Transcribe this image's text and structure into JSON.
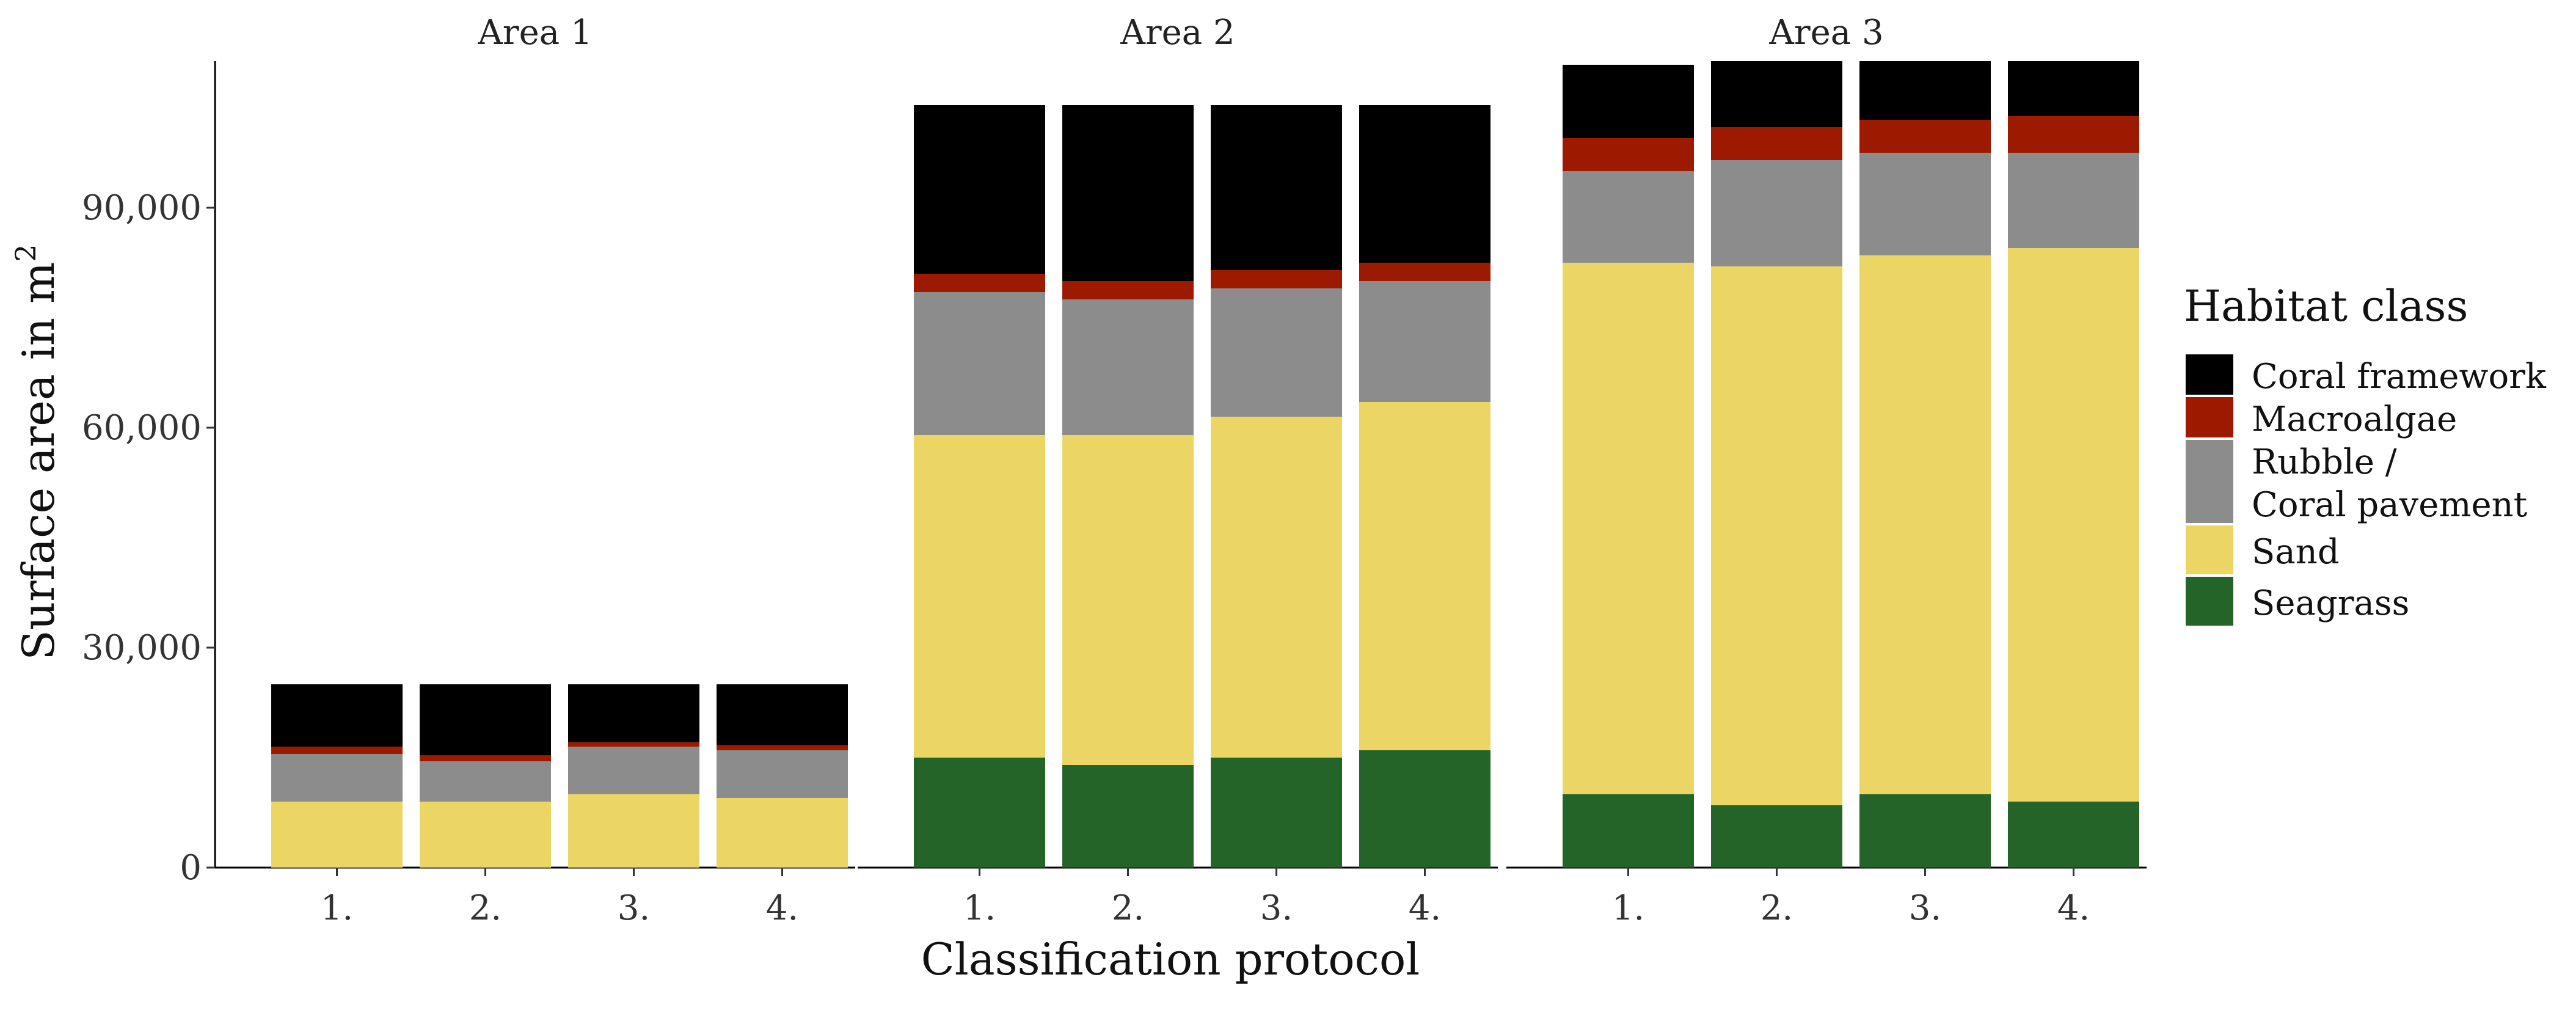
{
  "chart_data": {
    "type": "bar",
    "stacked": true,
    "facets": [
      {
        "title": "Area 1",
        "categories": [
          "1.",
          "2.",
          "3.",
          "4."
        ],
        "series": [
          {
            "name": "Seagrass",
            "values": [
              0,
              0,
              0,
              0
            ]
          },
          {
            "name": "Sand",
            "values": [
              9000,
              9000,
              10000,
              9500
            ]
          },
          {
            "name": "Rubble / Coral pavement",
            "values": [
              6500,
              5500,
              6500,
              6500
            ]
          },
          {
            "name": "Macroalgae",
            "values": [
              1000,
              800,
              600,
              700
            ]
          },
          {
            "name": "Coral framework",
            "values": [
              8500,
              9700,
              7900,
              8300
            ]
          }
        ]
      },
      {
        "title": "Area 2",
        "categories": [
          "1.",
          "2.",
          "3.",
          "4."
        ],
        "series": [
          {
            "name": "Seagrass",
            "values": [
              15000,
              14000,
              15000,
              16000
            ]
          },
          {
            "name": "Sand",
            "values": [
              44000,
              45000,
              46500,
              47500
            ]
          },
          {
            "name": "Rubble / Coral pavement",
            "values": [
              19500,
              18500,
              17500,
              16500
            ]
          },
          {
            "name": "Macroalgae",
            "values": [
              2500,
              2500,
              2500,
              2500
            ]
          },
          {
            "name": "Coral framework",
            "values": [
              23000,
              24000,
              22500,
              21500
            ]
          }
        ]
      },
      {
        "title": "Area 3",
        "categories": [
          "1.",
          "2.",
          "3.",
          "4."
        ],
        "series": [
          {
            "name": "Seagrass",
            "values": [
              10000,
              8500,
              10000,
              9000
            ]
          },
          {
            "name": "Sand",
            "values": [
              72500,
              73500,
              73500,
              75500
            ]
          },
          {
            "name": "Rubble / Coral pavement",
            "values": [
              12500,
              14500,
              14000,
              13000
            ]
          },
          {
            "name": "Macroalgae",
            "values": [
              4500,
              4500,
              4500,
              5000
            ]
          },
          {
            "name": "Coral framework",
            "values": [
              10000,
              9000,
              8000,
              7500
            ]
          }
        ]
      }
    ],
    "xlabel": "Classification protocol",
    "ylabel": "Surface area in m",
    "ylabel_superscript": "2",
    "ylim": [
      0,
      110000
    ],
    "yticks": [
      0,
      30000,
      60000,
      90000
    ],
    "ytick_labels": [
      "0",
      "30,000",
      "60,000",
      "90,000"
    ],
    "legend": {
      "title": "Habitat class",
      "position": "right",
      "entries": [
        {
          "name": "Coral framework",
          "lines": [
            "Coral framework"
          ],
          "color": "#000000"
        },
        {
          "name": "Macroalgae",
          "lines": [
            "Macroalgae"
          ],
          "color": "#9b1a00"
        },
        {
          "name": "Rubble / Coral pavement",
          "lines": [
            "Rubble /",
            "Coral pavement"
          ],
          "color": "#8c8c8c"
        },
        {
          "name": "Sand",
          "lines": [
            "Sand"
          ],
          "color": "#ebd665"
        },
        {
          "name": "Seagrass",
          "lines": [
            "Seagrass"
          ],
          "color": "#256428"
        }
      ]
    },
    "colors": {
      "Coral framework": "#000000",
      "Macroalgae": "#9b1a00",
      "Rubble / Coral pavement": "#8c8c8c",
      "Sand": "#ebd665",
      "Seagrass": "#256428"
    }
  }
}
